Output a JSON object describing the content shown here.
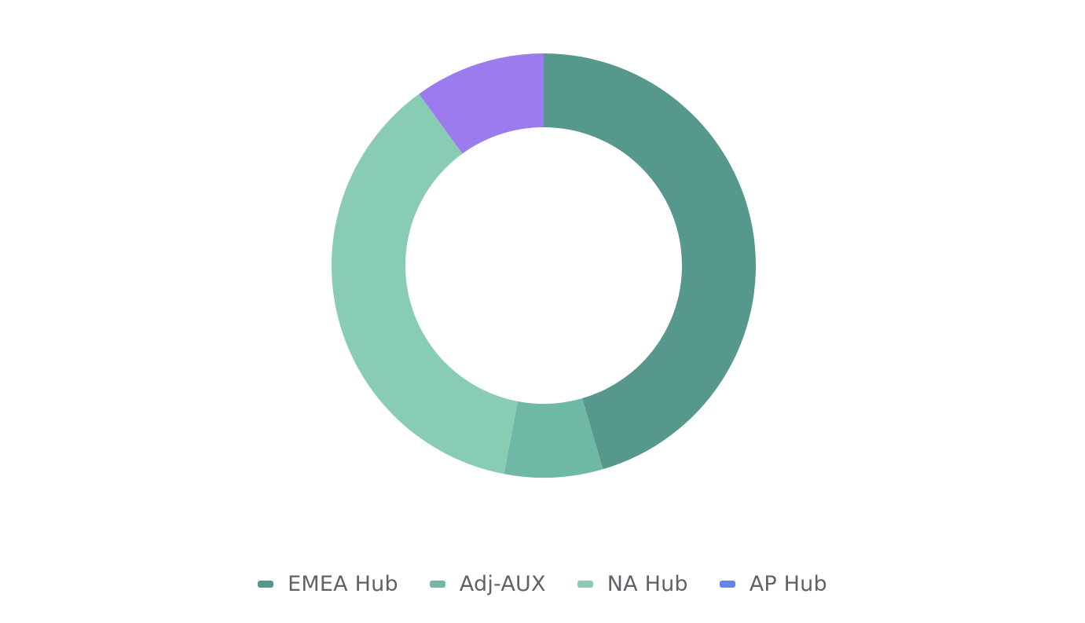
{
  "chart_data": {
    "type": "pie",
    "variant": "donut",
    "categories": [
      "EMEA Hub",
      "Adj-AUX",
      "NA Hub",
      "AP Hub"
    ],
    "values": [
      45.5,
      7.5,
      37.0,
      10.0
    ],
    "colors": [
      "#56998c",
      "#6fb8a5",
      "#89ccb4",
      "#9b7bed"
    ],
    "legend_colors": [
      "#56998c",
      "#6fb8a5",
      "#89ccb4",
      "#6584ec"
    ],
    "legend_placement": "bottom",
    "start_angle_deg": 0,
    "direction": "clockwise"
  }
}
